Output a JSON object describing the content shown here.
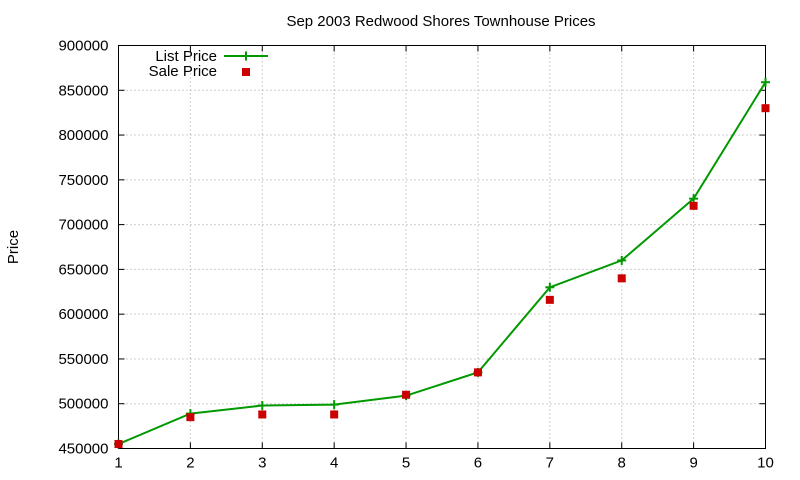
{
  "chart_data": {
    "type": "line",
    "title": "Sep 2003 Redwood Shores Townhouse Prices",
    "xlabel": "",
    "ylabel": "Price",
    "x": [
      1,
      2,
      3,
      4,
      5,
      6,
      7,
      8,
      9,
      10
    ],
    "xlim": [
      1,
      10
    ],
    "ylim": [
      450000,
      900000
    ],
    "xticks": [
      "1",
      "2",
      "3",
      "4",
      "5",
      "6",
      "7",
      "8",
      "9",
      "10"
    ],
    "yticks": [
      "450000",
      "500000",
      "550000",
      "600000",
      "650000",
      "700000",
      "750000",
      "800000",
      "850000",
      "900000"
    ],
    "grid": true,
    "legend_position": "top-left",
    "series": [
      {
        "name": "List Price",
        "style": "lines+points",
        "marker": "plus",
        "color": "#009900",
        "values": [
          455000,
          489000,
          498000,
          499000,
          509000,
          535000,
          630000,
          660000,
          729000,
          859000
        ]
      },
      {
        "name": "Sale Price",
        "style": "points",
        "marker": "square",
        "color": "#cc0000",
        "values": [
          455000,
          485000,
          488000,
          488000,
          510000,
          535000,
          616000,
          640000,
          721000,
          830000
        ]
      }
    ]
  }
}
